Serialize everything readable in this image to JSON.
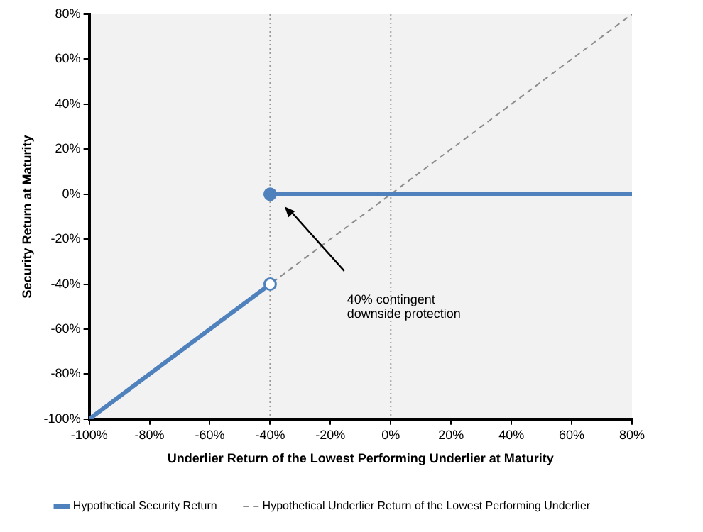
{
  "chart_data": {
    "type": "line",
    "xlabel": "Underlier Return of the Lowest Performing Underlier at Maturity",
    "ylabel": "Security Return at Maturity",
    "xlim": [
      -100,
      80
    ],
    "xticks": [
      {
        "value": -100,
        "label": "-100%"
      },
      {
        "value": -80,
        "label": "-80%"
      },
      {
        "value": -60,
        "label": "-60%"
      },
      {
        "value": -40,
        "label": "-40%"
      },
      {
        "value": -20,
        "label": "-20%"
      },
      {
        "value": 0,
        "label": "0%"
      },
      {
        "value": 20,
        "label": "20%"
      },
      {
        "value": 40,
        "label": "40%"
      },
      {
        "value": 60,
        "label": "60%"
      },
      {
        "value": 80,
        "label": "80%"
      }
    ],
    "ylim": [
      -100,
      80
    ],
    "yticks": [
      {
        "value": -100,
        "label": "-100%"
      },
      {
        "value": -80,
        "label": "-80%"
      },
      {
        "value": -60,
        "label": "-60%"
      },
      {
        "value": -40,
        "label": "-40%"
      },
      {
        "value": -20,
        "label": "-20%"
      },
      {
        "value": 0,
        "label": "0%"
      },
      {
        "value": 20,
        "label": "20%"
      },
      {
        "value": 40,
        "label": "40%"
      },
      {
        "value": 60,
        "label": "60%"
      },
      {
        "value": 80,
        "label": "80%"
      }
    ],
    "series": [
      {
        "name": "Hypothetical Security Return",
        "color": "#4f81bd",
        "x": [
          -100,
          -40,
          null,
          -40,
          80
        ],
        "values": [
          -100,
          -40,
          null,
          0,
          0
        ],
        "marker": "none",
        "line_style": "solid"
      },
      {
        "name": "Hypothetical Underlier Return of the Lowest Performing Underlier",
        "color": "#8c8c8c",
        "x": [
          -100,
          80
        ],
        "values": [
          -100,
          80
        ],
        "marker": "none",
        "line_style": "dashed"
      },
      {
        "type": "scatter",
        "color": "#4f81bd",
        "colors": [
          "#ffffff",
          "#4f81bd"
        ],
        "x": [
          -40,
          -40
        ],
        "values": [
          -40,
          0
        ],
        "marker": "circle"
      }
    ],
    "ref_lines": [
      {
        "axis": "x",
        "value": -40,
        "color": "#999999",
        "line_style": "dotted"
      },
      {
        "axis": "x",
        "value": 0,
        "color": "#999999",
        "line_style": "dotted"
      }
    ],
    "annotations": [
      "40% contingent\ndownside protection"
    ],
    "grid": false,
    "legend": "bottom"
  }
}
